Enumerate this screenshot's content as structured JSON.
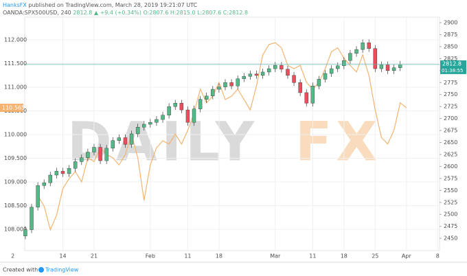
{
  "header": {
    "author": "HanksFX",
    "published": "published on TradingView.com, March 28, 2019 19:21:07 UTC",
    "symbol": "OANDA:SPX500USD, 240",
    "price": "2812.8",
    "arrow": "▲",
    "change": "+9.4 (+0.34%)",
    "open": "O:2807.6",
    "high": "H:2815.0",
    "low": "L:2807.6",
    "close": "C:2812.8"
  },
  "footer": {
    "prefix": "Created with",
    "brand": "TradingView"
  },
  "chart_data": {
    "type": "candlestick-overlay",
    "watermark": [
      "DAILY",
      "FX"
    ],
    "xlim": [
      1.9,
      68.3
    ],
    "xticks": [
      {
        "value": 0,
        "label": "2"
      },
      {
        "value": 8,
        "label": "14"
      },
      {
        "value": 13,
        "label": "21"
      },
      {
        "value": 22,
        "label": "Feb"
      },
      {
        "value": 28,
        "label": "11"
      },
      {
        "value": 33,
        "label": "18"
      },
      {
        "value": 42,
        "label": "Mar"
      },
      {
        "value": 48,
        "label": "11"
      },
      {
        "value": 53,
        "label": "18"
      },
      {
        "value": 58,
        "label": "25"
      },
      {
        "value": 63,
        "label": "Apr"
      },
      {
        "value": 68,
        "label": "8"
      }
    ],
    "ylim": [
      107.551,
      112.478
    ],
    "yticks": [
      {
        "value": 108,
        "label": "108.000"
      },
      {
        "value": 108.5,
        "label": "108.500"
      },
      {
        "value": 109,
        "label": "109.000"
      },
      {
        "value": 109.5,
        "label": "109.500"
      },
      {
        "value": 110,
        "label": "110.000"
      },
      {
        "value": 110.5,
        "label": "110.500"
      },
      {
        "value": 111,
        "label": "111.000"
      },
      {
        "value": 111.5,
        "label": "111.500"
      },
      {
        "value": 112,
        "label": "112.000"
      }
    ],
    "y2lim": [
      2424.4,
      2911.5
    ],
    "y2ticks": [
      2450,
      2475,
      2500,
      2525,
      2550,
      2575,
      2600,
      2625,
      2650,
      2675,
      2700,
      2725,
      2750,
      2775,
      2800,
      2825,
      2850,
      2875,
      2900
    ],
    "grid": true,
    "candles": {
      "axis": "y2",
      "up_color": "#53b987",
      "down_color": "#eb4d5c",
      "x": [
        2,
        3,
        4,
        5,
        6,
        7,
        8,
        9,
        10,
        11,
        12,
        13,
        14,
        15,
        16,
        17,
        18,
        19,
        20,
        21,
        22,
        23,
        24,
        25,
        26,
        27,
        28,
        29,
        30,
        31,
        32,
        33,
        34,
        35,
        36,
        37,
        38,
        39,
        40,
        41,
        42,
        43,
        44,
        45,
        46,
        47,
        48,
        49,
        50,
        51,
        52,
        53,
        54,
        55,
        56,
        57,
        58,
        59,
        60,
        61,
        62
      ],
      "open": [
        2455,
        2468,
        2515,
        2560,
        2566,
        2582,
        2590,
        2585,
        2596,
        2610,
        2618,
        2630,
        2640,
        2612,
        2638,
        2654,
        2660,
        2646,
        2668,
        2682,
        2688,
        2692,
        2698,
        2707,
        2725,
        2732,
        2718,
        2692,
        2720,
        2740,
        2747,
        2761,
        2766,
        2775,
        2768,
        2783,
        2788,
        2793,
        2790,
        2797,
        2804,
        2811,
        2803,
        2790,
        2775,
        2754,
        2732,
        2768,
        2782,
        2794,
        2804,
        2810,
        2821,
        2836,
        2844,
        2858,
        2846,
        2804,
        2812,
        2800,
        2806
      ],
      "high": [
        2475,
        2522,
        2567,
        2573,
        2589,
        2597,
        2597,
        2603,
        2617,
        2625,
        2637,
        2647,
        2647,
        2645,
        2661,
        2667,
        2667,
        2675,
        2689,
        2695,
        2699,
        2705,
        2714,
        2732,
        2739,
        2739,
        2725,
        2727,
        2747,
        2754,
        2768,
        2773,
        2782,
        2782,
        2790,
        2795,
        2800,
        2800,
        2804,
        2811,
        2818,
        2818,
        2810,
        2797,
        2782,
        2761,
        2775,
        2789,
        2801,
        2811,
        2817,
        2828,
        2843,
        2851,
        2865,
        2865,
        2853,
        2819,
        2819,
        2813,
        2820
      ],
      "low": [
        2448,
        2461,
        2508,
        2553,
        2559,
        2575,
        2578,
        2578,
        2589,
        2603,
        2611,
        2623,
        2605,
        2605,
        2631,
        2647,
        2639,
        2639,
        2661,
        2675,
        2681,
        2685,
        2691,
        2700,
        2718,
        2711,
        2685,
        2685,
        2713,
        2733,
        2740,
        2754,
        2759,
        2761,
        2761,
        2776,
        2781,
        2783,
        2783,
        2790,
        2797,
        2796,
        2783,
        2768,
        2747,
        2725,
        2725,
        2761,
        2775,
        2787,
        2797,
        2803,
        2814,
        2829,
        2837,
        2839,
        2797,
        2797,
        2793,
        2793,
        2799
      ],
      "close": [
        2468,
        2515,
        2560,
        2566,
        2582,
        2590,
        2585,
        2596,
        2610,
        2618,
        2630,
        2640,
        2612,
        2638,
        2654,
        2660,
        2646,
        2668,
        2682,
        2688,
        2692,
        2698,
        2707,
        2725,
        2732,
        2718,
        2692,
        2720,
        2740,
        2747,
        2761,
        2766,
        2775,
        2768,
        2783,
        2788,
        2793,
        2790,
        2797,
        2804,
        2811,
        2803,
        2790,
        2775,
        2754,
        2732,
        2768,
        2782,
        2794,
        2804,
        2810,
        2821,
        2836,
        2844,
        2858,
        2846,
        2804,
        2812,
        2800,
        2806,
        2812.8
      ],
      "last_label": {
        "value": 2812.8,
        "label": "2812.8",
        "countdown": "01:38:55"
      }
    },
    "series": [
      {
        "color": "#f4b470",
        "x": [
          4,
          5,
          6,
          7,
          8,
          9,
          10,
          11,
          12,
          13,
          14,
          15,
          16,
          17,
          18,
          19,
          20,
          21,
          22,
          23,
          24,
          25,
          26,
          27,
          28,
          29,
          30,
          31,
          32,
          33,
          34,
          35,
          36,
          37,
          38,
          39,
          40,
          41,
          42,
          43,
          44,
          45,
          46,
          47,
          48,
          49,
          50,
          51,
          52,
          53,
          54,
          55,
          56,
          57,
          58,
          59,
          60,
          61,
          62,
          63
        ],
        "values": [
          108.71,
          108.49,
          107.99,
          108.3,
          108.86,
          109.07,
          109.22,
          109.0,
          109.51,
          109.43,
          109.72,
          109.58,
          109.51,
          109.36,
          109.58,
          110.01,
          109.51,
          108.61,
          109.36,
          109.72,
          109.87,
          109.8,
          110.01,
          109.8,
          110.09,
          110.45,
          110.96,
          110.67,
          110.81,
          111.1,
          110.74,
          110.81,
          110.96,
          110.74,
          110.52,
          111.03,
          111.68,
          111.9,
          111.94,
          111.83,
          111.46,
          111.39,
          111.46,
          111.1,
          110.96,
          111.1,
          111.39,
          111.75,
          111.83,
          111.61,
          111.46,
          111.32,
          111.68,
          111.25,
          110.52,
          109.94,
          109.8,
          110.09,
          110.67,
          110.565
        ],
        "last_label": {
          "value": 110.565,
          "label": "110.565"
        }
      }
    ]
  }
}
